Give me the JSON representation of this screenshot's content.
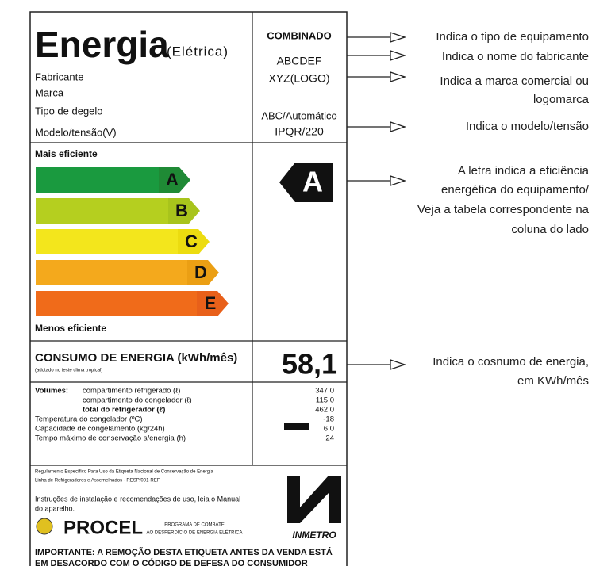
{
  "label": {
    "title": "Energia",
    "subtitle": "(Elétrica)",
    "fields": [
      "Fabricante",
      "Marca",
      "Tipo de degelo",
      "Modelo/tensão(V)"
    ],
    "field_values": [
      "COMBINADO",
      "ABCDEF",
      "XYZ(LOGO)",
      "ABC/Automático",
      "IPQR/220"
    ],
    "most_efficient": "Mais eficiente",
    "least_efficient": "Menos eficiente",
    "classes": [
      "A",
      "B",
      "C",
      "D",
      "E"
    ],
    "rating": "A",
    "consumption_title": "CONSUMO DE ENERGIA (kWh/mês)",
    "consumption_note": "(adotado no teste clima tropical)",
    "consumption": "58,1",
    "volumes_label": "Volumes:",
    "specs": [
      {
        "text": "compartimento refrigerado (ℓ)",
        "value": "347,0"
      },
      {
        "text": "compartimento do congelador (ℓ)",
        "value": "115,0"
      },
      {
        "text": "total do refrigerador (ℓ)",
        "value": "462,0"
      },
      {
        "text": "Temperatura do congelador (ºC)",
        "value": "-18"
      },
      {
        "text": "Capacidade de congelamento (kg/24h)",
        "value": "6,0"
      },
      {
        "text": "Tempo máximo de conservação s/energia (h)",
        "value": "24"
      }
    ],
    "regulation": [
      "Regulamento Específico Para Uso da Etiqueta Nacional de Conservação de Energia",
      "Linha de Refrigeradores e Assemelhados - RESP/001-REF"
    ],
    "instructions": [
      "Instruções de instalação e recomendações de uso, leia o Manual",
      "do aparelho."
    ],
    "procel": "PROCEL",
    "procel_tag": [
      "PROGRAMA DE COMBATE",
      "AO DESPERDÍCIO DE ENERGIA ELÉTRICA"
    ],
    "inmetro": "INMETRO",
    "warning": [
      "IMPORTANTE: A REMOÇÃO DESTA ETIQUETA ANTES DA VENDA ESTÁ",
      "EM DESACORDO COM O CÓDIGO DE DEFESA DO CONSUMIDOR"
    ]
  },
  "annotations": [
    {
      "lines": [
        "Indica o tipo de equipamento"
      ]
    },
    {
      "lines": [
        "Indica o nome do fabricante"
      ]
    },
    {
      "lines": [
        "Indica a marca comercial ou",
        "logomarca"
      ]
    },
    {
      "lines": [
        "Indica o modelo/tensão"
      ]
    },
    {
      "lines": [
        "A letra indica a eficiência",
        "energética do equipamento/",
        "Veja a tabela correspondente na",
        "coluna do lado"
      ]
    },
    {
      "lines": [
        "Indica o cosnumo de energia,",
        "em KWh/mês"
      ]
    }
  ]
}
